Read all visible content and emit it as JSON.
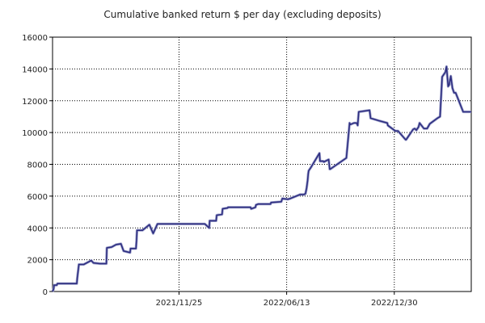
{
  "chart_data": {
    "type": "line",
    "title": "Cumulative banked return $ per day (excluding deposits)",
    "xlabel": "",
    "ylabel": "",
    "ylim": [
      0,
      16000
    ],
    "yticks": [
      0,
      2000,
      4000,
      6000,
      8000,
      10000,
      12000,
      14000,
      16000
    ],
    "ytick_labels": [
      "0",
      "2000",
      "4000",
      "6000",
      "8000",
      "10000",
      "12000",
      "14000",
      "16000"
    ],
    "xlim": [
      "2021-04-04",
      "2023-05-22"
    ],
    "xticks": [
      "2021-11-25",
      "2022-06-13",
      "2022-12-30"
    ],
    "xtick_labels": [
      "2021/11/25",
      "2022/06/13",
      "2022/12/30"
    ],
    "grid": true,
    "line_color": "#2e2e80",
    "series": [
      {
        "x": [
          "2021-04-04",
          "2021-04-06",
          "2021-04-07",
          "2021-04-12",
          "2021-04-13",
          "2021-05-19",
          "2021-05-20",
          "2021-05-23",
          "2021-06-01",
          "2021-06-15",
          "2021-06-19",
          "2021-07-01",
          "2021-07-13",
          "2021-07-14",
          "2021-07-23",
          "2021-07-31",
          "2021-08-09",
          "2021-08-14",
          "2021-08-26",
          "2021-08-27",
          "2021-09-06",
          "2021-09-07",
          "2021-09-08",
          "2021-09-18",
          "2021-10-01",
          "2021-10-08",
          "2021-10-16",
          "2021-10-26",
          "2021-11-01",
          "2021-11-02",
          "2021-12-03",
          "2021-12-11",
          "2022-01-12",
          "2022-01-20",
          "2022-01-21",
          "2022-02-02",
          "2022-02-03",
          "2022-02-13",
          "2022-02-14",
          "2022-02-23",
          "2022-02-24",
          "2022-04-07",
          "2022-04-08",
          "2022-04-16",
          "2022-04-17",
          "2022-04-21",
          "2022-05-14",
          "2022-05-15",
          "2022-06-03",
          "2022-06-05",
          "2022-06-15",
          "2022-06-20",
          "2022-07-08",
          "2022-07-09",
          "2022-07-15",
          "2022-07-18",
          "2022-07-20",
          "2022-07-22",
          "2022-07-23",
          "2022-07-24",
          "2022-07-28",
          "2022-08-13",
          "2022-08-14",
          "2022-08-20",
          "2022-08-21",
          "2022-08-30",
          "2022-09-01",
          "2022-09-02",
          "2022-10-02",
          "2022-10-05",
          "2022-10-08",
          "2022-10-09",
          "2022-10-16",
          "2022-10-21",
          "2022-10-23",
          "2022-10-25",
          "2022-11-14",
          "2022-11-16",
          "2022-12-01",
          "2022-12-17",
          "2022-12-18",
          "2023-01-01",
          "2023-01-06",
          "2023-01-20",
          "2023-01-21",
          "2023-02-03",
          "2023-02-06",
          "2023-02-09",
          "2023-02-13",
          "2023-02-15",
          "2023-02-23",
          "2023-03-01",
          "2023-03-06",
          "2023-03-20",
          "2023-03-25",
          "2023-03-29",
          "2023-04-04",
          "2023-04-05",
          "2023-04-06",
          "2023-04-09",
          "2023-04-11",
          "2023-04-14",
          "2023-04-17",
          "2023-04-20",
          "2023-04-23",
          "2023-05-07",
          "2023-05-09",
          "2023-05-13",
          "2023-05-20",
          "2023-05-22"
        ],
        "values": [
          0,
          150,
          400,
          400,
          500,
          500,
          850,
          1700,
          1700,
          1950,
          1800,
          1750,
          1750,
          2750,
          2800,
          2950,
          3000,
          2550,
          2450,
          2700,
          2700,
          3200,
          3850,
          3850,
          4200,
          3650,
          4250,
          4250,
          4250,
          4250,
          4250,
          4250,
          4250,
          4000,
          4450,
          4450,
          4800,
          4850,
          5200,
          5250,
          5300,
          5300,
          5200,
          5300,
          5450,
          5500,
          5500,
          5600,
          5650,
          5850,
          5800,
          5850,
          6100,
          6100,
          6100,
          6150,
          6500,
          7000,
          7400,
          7600,
          7800,
          8700,
          8200,
          8200,
          8150,
          8300,
          7700,
          7700,
          8400,
          9500,
          10600,
          10500,
          10600,
          10600,
          10450,
          11300,
          11400,
          10900,
          10750,
          10600,
          10450,
          10100,
          10100,
          9550,
          9550,
          10200,
          10250,
          10150,
          10350,
          10600,
          10250,
          10250,
          10550,
          10900,
          11000,
          13500,
          13800,
          14000,
          14150,
          12900,
          13000,
          13550,
          12800,
          12500,
          12500,
          11300,
          11300,
          11300,
          11300,
          11300
        ]
      }
    ]
  }
}
